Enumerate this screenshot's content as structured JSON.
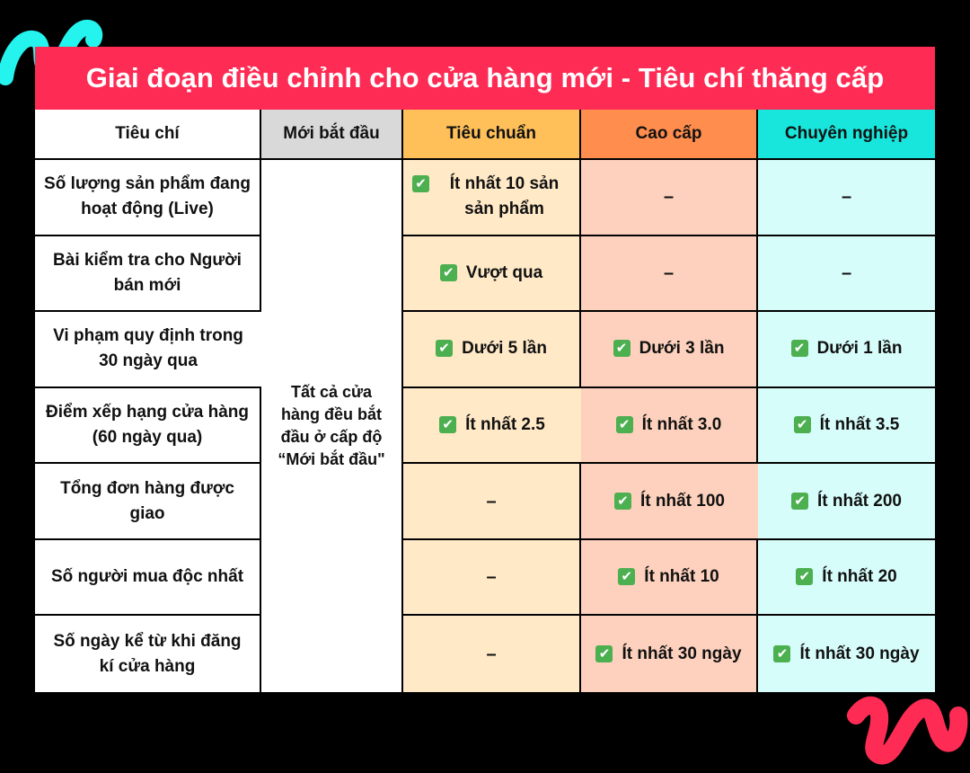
{
  "title": "Giai đoạn điều chỉnh cho cửa hàng mới - Tiêu chí thăng cấp",
  "headers": {
    "criteria": "Tiêu chí",
    "new": "Mới bắt đầu",
    "standard": "Tiêu chuẩn",
    "premium": "Cao cấp",
    "pro": "Chuyên nghiệp"
  },
  "new_note": "Tất cả cửa hàng đều bắt đầu ở cấp độ “Mới bắt đầu\"",
  "rows": [
    {
      "criterion": "Số lượng sản phẩm đang hoạt động (Live)",
      "standard": "Ít nhất 10 sản sản phẩm",
      "premium": "–",
      "pro": "–"
    },
    {
      "criterion": "Bài kiểm tra cho Người bán mới",
      "standard": "Vượt qua",
      "premium": "–",
      "pro": "–"
    },
    {
      "criterion": "Vi phạm quy định trong 30 ngày qua",
      "standard": "Dưới 5 lần",
      "premium": "Dưới 3 lần",
      "pro": "Dưới 1 lần"
    },
    {
      "criterion": "Điểm xếp hạng cửa hàng (60 ngày qua)",
      "standard": "Ít nhất 2.5",
      "premium": "Ít nhất 3.0",
      "pro": "Ít nhất 3.5"
    },
    {
      "criterion": "Tổng đơn hàng được giao",
      "standard": "–",
      "premium": "Ít nhất 100",
      "pro": "Ít nhất 200"
    },
    {
      "criterion": "Số người mua độc nhất",
      "standard": "–",
      "premium": "Ít nhất 10",
      "pro": "Ít nhất 20"
    },
    {
      "criterion": "Số ngày kể từ khi đăng kí cửa hàng",
      "standard": "–",
      "premium": "Ít nhất 30 ngày",
      "pro": "Ít nhất 30 ngày"
    }
  ],
  "check_icon": "check-mark-icon",
  "colors": {
    "title_bg": "#FE2C55",
    "new_header": "#D9D9D9",
    "standard_header": "#FFC05A",
    "premium_header": "#FF8D4E",
    "pro_header": "#18E6DC",
    "standard_cell": "#FFE9C7",
    "premium_cell": "#FDD1BD",
    "pro_cell": "#D7FDFB",
    "check": "#4CAF50",
    "deco_cyan": "#25F4EE",
    "deco_red": "#FE2C55"
  }
}
